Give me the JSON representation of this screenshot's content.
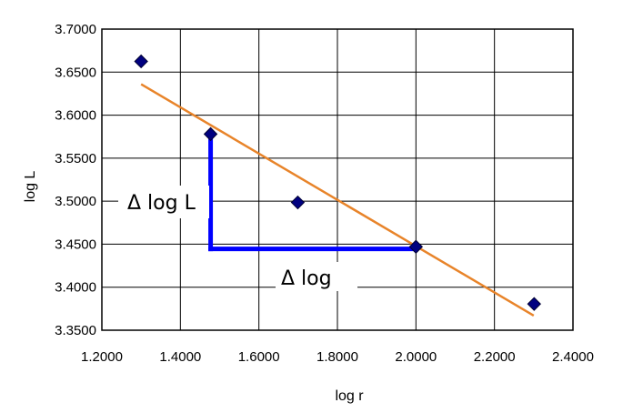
{
  "chart_data": {
    "type": "scatter",
    "title": "",
    "xlabel": "log r",
    "ylabel": "log L",
    "xlim": [
      1.2,
      2.4
    ],
    "ylim": [
      3.35,
      3.7
    ],
    "x_ticks": [
      "1.2000",
      "1.4000",
      "1.6000",
      "1.8000",
      "2.0000",
      "2.2000",
      "2.4000"
    ],
    "y_ticks": [
      "3.3500",
      "3.4000",
      "3.4500",
      "3.5000",
      "3.5500",
      "3.6000",
      "3.6500",
      "3.7000"
    ],
    "grid": true,
    "series": [
      {
        "marker": "diamond",
        "color": "#000080",
        "points": [
          {
            "x": 1.3,
            "y": 3.6625
          },
          {
            "x": 1.477,
            "y": 3.578
          },
          {
            "x": 1.699,
            "y": 3.4985
          },
          {
            "x": 2.0,
            "y": 3.447
          },
          {
            "x": 2.301,
            "y": 3.3805
          }
        ]
      }
    ],
    "trendline": {
      "color": "#E8842A",
      "from": {
        "x": 1.3,
        "y": 3.636
      },
      "to": {
        "x": 2.3,
        "y": 3.367
      }
    },
    "slope_triangle": {
      "color": "#0000FF",
      "vertical": {
        "x": 1.477,
        "y_top": 3.578,
        "y_bottom": 3.4445
      },
      "horizontal": {
        "y": 3.4445,
        "x_left": 1.477,
        "x_right": 2.0
      }
    },
    "annotations": {
      "delta_log_L": "Δ log L",
      "delta_log": "Δ log"
    }
  }
}
